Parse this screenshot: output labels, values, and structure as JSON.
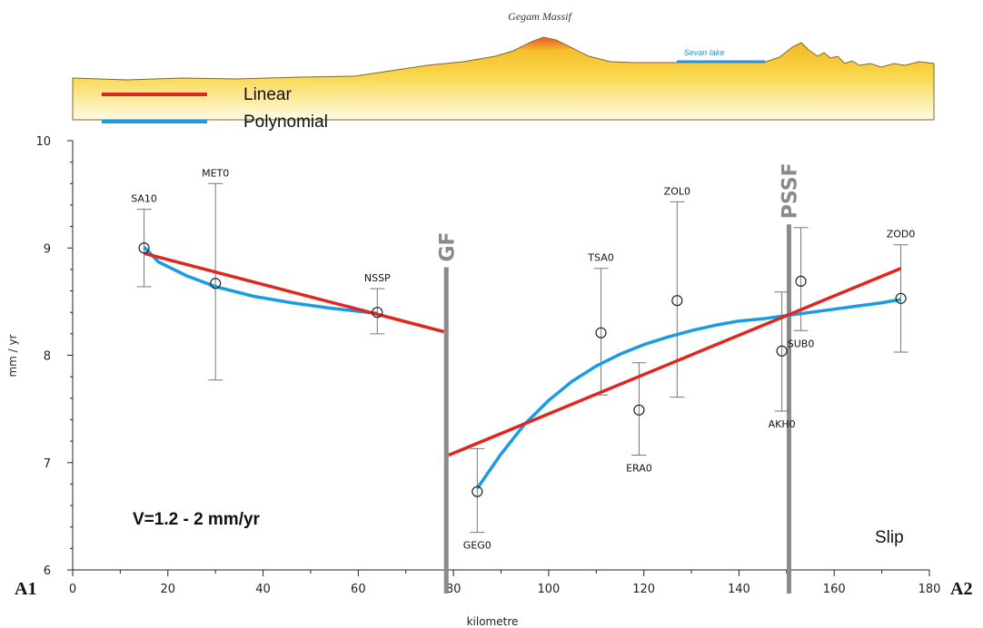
{
  "chart_data": {
    "type": "scatter",
    "xlabel": "kilometre",
    "ylabel": "mm / yr",
    "xlim": [
      0,
      180
    ],
    "ylim": [
      6,
      10
    ],
    "xticks": [
      0,
      20,
      40,
      60,
      80,
      100,
      120,
      140,
      160,
      180
    ],
    "yticks": [
      6,
      7,
      8,
      9,
      10
    ],
    "grid": false,
    "legend_placement": "top-left",
    "legend": [
      {
        "name": "Linear",
        "color": "#e0261f"
      },
      {
        "name": "Polynomial",
        "color": "#1b9be3"
      }
    ],
    "stations": [
      {
        "name": "SA10",
        "x": 15,
        "y": 9.0,
        "err_low": 8.64,
        "err_high": 9.36
      },
      {
        "name": "MET0",
        "x": 30,
        "y": 8.67,
        "err_low": 7.77,
        "err_high": 9.6
      },
      {
        "name": "NSSP",
        "x": 64,
        "y": 8.4,
        "err_low": 8.2,
        "err_high": 8.62
      },
      {
        "name": "GEG0",
        "x": 85,
        "y": 6.73,
        "err_low": 6.35,
        "err_high": 7.13
      },
      {
        "name": "TSA0",
        "x": 111,
        "y": 8.21,
        "err_low": 7.63,
        "err_high": 8.81
      },
      {
        "name": "ERA0",
        "x": 119,
        "y": 7.49,
        "err_low": 7.07,
        "err_high": 7.93
      },
      {
        "name": "ZOL0",
        "x": 127,
        "y": 8.51,
        "err_low": 7.61,
        "err_high": 9.43
      },
      {
        "name": "AKH0",
        "x": 149,
        "y": 8.04,
        "err_low": 7.48,
        "err_high": 8.59
      },
      {
        "name": "SUB0",
        "x": 153,
        "y": 8.69,
        "err_low": 8.23,
        "err_high": 9.19
      },
      {
        "name": "ZOD0",
        "x": 174,
        "y": 8.53,
        "err_low": 8.03,
        "err_high": 9.03
      }
    ],
    "linear_segments": [
      {
        "x": [
          15,
          78
        ],
        "y": [
          8.95,
          8.22
        ]
      },
      {
        "x": [
          79,
          174
        ],
        "y": [
          7.07,
          8.81
        ]
      }
    ],
    "polynomial_segments": [
      {
        "x": [
          15,
          18,
          24,
          30,
          38,
          46,
          54,
          60,
          64
        ],
        "y": [
          9.01,
          8.87,
          8.74,
          8.64,
          8.55,
          8.49,
          8.44,
          8.41,
          8.39
        ]
      },
      {
        "x": [
          85,
          90,
          95,
          100,
          105,
          110,
          115,
          120,
          125,
          130,
          135,
          140,
          145,
          150,
          155,
          160,
          165,
          170,
          174
        ],
        "y": [
          6.76,
          7.08,
          7.36,
          7.58,
          7.76,
          7.9,
          8.01,
          8.1,
          8.17,
          8.23,
          8.28,
          8.32,
          8.34,
          8.37,
          8.4,
          8.43,
          8.46,
          8.49,
          8.52
        ]
      }
    ],
    "faults": [
      {
        "name": "GF",
        "x": 78.5
      },
      {
        "name": "PSSF",
        "x": 150.5
      }
    ],
    "annotations": {
      "velocity": "V=1.2 - 2 mm/yr",
      "component": "Slip",
      "left_end": "A1",
      "right_end": "A2"
    },
    "profile": {
      "massif_label": "Gegam Massif",
      "lake_label": "Sevan lake"
    }
  }
}
